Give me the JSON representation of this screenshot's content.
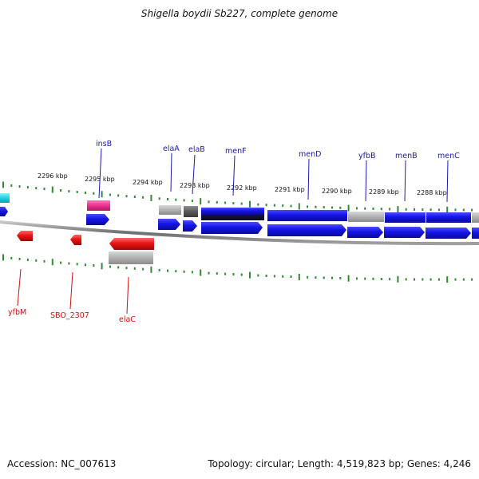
{
  "title": "Shigella boydii Sb227, complete genome",
  "footer": {
    "accession": "Accession: NC_007613",
    "topology": "Topology: circular; Length: 4,519,823 bp; Genes: 4,246"
  },
  "scale_labels": [
    "2296 kbp",
    "2295 kbp",
    "2294 kbp",
    "2293 kbp",
    "2292 kbp",
    "2291 kbp",
    "2290 kbp",
    "2289 kbp",
    "2288 kbp"
  ],
  "forward_gene_labels": [
    "insB",
    "elaA",
    "elaB",
    "menF",
    "menD",
    "yfbB",
    "menB",
    "menC"
  ],
  "reverse_gene_labels": [
    "yfbM",
    "SBO_2307",
    "elaC"
  ],
  "colors": {
    "forward_label": "#1a1aaa",
    "reverse_label": "#cc1111",
    "tick": "#2e8b2e",
    "backbone": "#808080",
    "cds_blue": "#1414e6",
    "cds_red": "#e81414",
    "pseudo_pink": "#ec2f8c",
    "hit_grey": "#b0b0b0",
    "cyan": "#19d6e6"
  }
}
